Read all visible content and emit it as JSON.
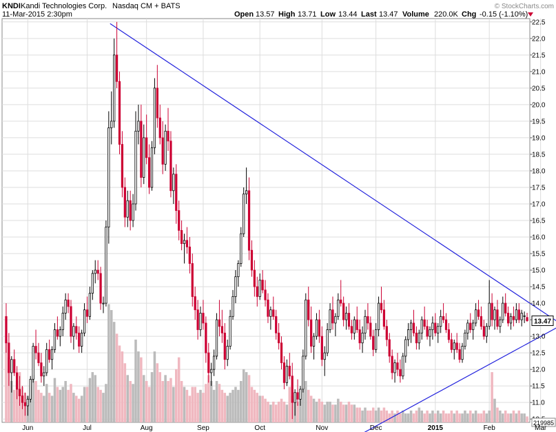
{
  "header": {
    "symbol": "KNDI",
    "company": "Kandi Technologies Corp.",
    "exchange": "Nasdaq CM + BATS",
    "date_time": "11-Mar-2015 2:30pm",
    "open_label": "Open",
    "open_value": "13.57",
    "high_label": "High",
    "high_value": "13.71",
    "low_label": "Low",
    "low_value": "13.44",
    "last_label": "Last",
    "last_value": "13.47",
    "volume_label": "Volume",
    "volume_value": "220.0K",
    "chg_label": "Chg",
    "chg_value": "-0.15 (-1.10%)",
    "watermark": "© StockCharts.com"
  },
  "colors": {
    "up": "#000000",
    "down": "#cc0033",
    "trendline": "#2222dd",
    "grid": "#dddddd",
    "vol_up": "#bbbbbb",
    "vol_down": "#f0b8c0",
    "last_marker": "#000000"
  },
  "chart_data": {
    "type": "candlestick",
    "y_ticks": [
      "10.5",
      "11.0",
      "11.5",
      "12.0",
      "12.5",
      "13.0",
      "13.5",
      "14.0",
      "14.5",
      "15.0",
      "15.5",
      "16.0",
      "16.5",
      "17.0",
      "17.5",
      "18.0",
      "18.5",
      "19.0",
      "19.5",
      "20.0",
      "20.5",
      "21.0",
      "21.5",
      "22.0",
      "22.5"
    ],
    "ylim": [
      10.4,
      22.6
    ],
    "x_labels": [
      {
        "label": "Jun",
        "index": 8,
        "bold": false
      },
      {
        "label": "Jul",
        "index": 30,
        "bold": false
      },
      {
        "label": "Aug",
        "index": 52,
        "bold": false
      },
      {
        "label": "Sep",
        "index": 73,
        "bold": false
      },
      {
        "label": "Oct",
        "index": 94,
        "bold": false
      },
      {
        "label": "Nov",
        "index": 117,
        "bold": false
      },
      {
        "label": "Dec",
        "index": 137,
        "bold": false
      },
      {
        "label": "2015",
        "index": 159,
        "bold": true
      },
      {
        "label": "Feb",
        "index": 179,
        "bold": false
      },
      {
        "label": "Mar",
        "index": 198,
        "bold": false
      }
    ],
    "last_price_label": "13.47",
    "volume_label": "219985",
    "ohlc": [
      [
        13.6,
        14.0,
        12.5,
        12.8
      ],
      [
        12.8,
        13.1,
        11.5,
        11.9
      ],
      [
        11.9,
        12.4,
        11.3,
        12.3
      ],
      [
        12.3,
        12.6,
        11.8,
        11.9
      ],
      [
        11.9,
        12.1,
        11.1,
        11.4
      ],
      [
        11.4,
        11.8,
        10.9,
        11.2
      ],
      [
        11.2,
        11.5,
        10.8,
        11.0
      ],
      [
        11.0,
        11.3,
        10.6,
        10.9
      ],
      [
        10.9,
        11.2,
        10.6,
        11.1
      ],
      [
        11.1,
        11.8,
        11.0,
        11.7
      ],
      [
        11.7,
        12.8,
        11.6,
        12.7
      ],
      [
        12.7,
        13.2,
        12.3,
        12.5
      ],
      [
        12.5,
        12.8,
        12.1,
        12.2
      ],
      [
        12.2,
        12.5,
        11.6,
        11.8
      ],
      [
        11.8,
        12.1,
        11.5,
        11.9
      ],
      [
        11.9,
        12.8,
        11.8,
        12.6
      ],
      [
        12.6,
        12.9,
        12.2,
        12.3
      ],
      [
        12.3,
        12.7,
        12.0,
        12.6
      ],
      [
        12.6,
        13.4,
        12.5,
        13.2
      ],
      [
        13.2,
        13.6,
        12.9,
        13.0
      ],
      [
        13.0,
        13.3,
        12.7,
        13.2
      ],
      [
        13.2,
        13.9,
        13.0,
        13.7
      ],
      [
        13.7,
        14.3,
        13.5,
        14.1
      ],
      [
        14.1,
        14.3,
        13.7,
        13.9
      ],
      [
        13.9,
        14.1,
        12.8,
        13.0
      ],
      [
        13.0,
        13.4,
        12.6,
        13.3
      ],
      [
        13.3,
        13.6,
        12.9,
        13.1
      ],
      [
        13.1,
        13.3,
        12.5,
        12.7
      ],
      [
        12.7,
        13.2,
        12.5,
        13.1
      ],
      [
        13.1,
        14.0,
        13.0,
        13.8
      ],
      [
        13.8,
        14.2,
        13.4,
        13.6
      ],
      [
        13.6,
        14.5,
        13.5,
        14.3
      ],
      [
        14.3,
        15.0,
        14.1,
        14.9
      ],
      [
        14.9,
        15.3,
        14.6,
        15.0
      ],
      [
        15.0,
        15.3,
        14.7,
        14.9
      ],
      [
        14.9,
        15.1,
        13.8,
        14.0
      ],
      [
        14.0,
        14.2,
        13.7,
        14.0
      ],
      [
        14.0,
        16.5,
        13.9,
        16.3
      ],
      [
        16.3,
        19.8,
        15.8,
        19.3
      ],
      [
        19.3,
        20.4,
        18.8,
        19.5
      ],
      [
        19.5,
        22.0,
        19.3,
        21.5
      ],
      [
        21.5,
        22.5,
        20.5,
        20.7
      ],
      [
        20.7,
        21.0,
        18.5,
        18.8
      ],
      [
        18.8,
        19.2,
        17.2,
        17.5
      ],
      [
        17.5,
        17.8,
        16.3,
        16.6
      ],
      [
        16.6,
        17.4,
        16.3,
        17.1
      ],
      [
        17.1,
        17.4,
        16.2,
        16.5
      ],
      [
        16.5,
        17.3,
        16.3,
        17.0
      ],
      [
        17.0,
        19.8,
        16.8,
        19.2
      ],
      [
        19.2,
        20.0,
        18.8,
        19.5
      ],
      [
        19.5,
        20.0,
        17.5,
        17.8
      ],
      [
        17.8,
        19.4,
        17.6,
        19.0
      ],
      [
        19.0,
        19.7,
        18.2,
        18.4
      ],
      [
        18.4,
        18.8,
        17.3,
        17.5
      ],
      [
        17.5,
        18.9,
        17.4,
        18.7
      ],
      [
        18.7,
        20.8,
        18.5,
        20.5
      ],
      [
        20.5,
        21.2,
        19.3,
        19.6
      ],
      [
        19.6,
        20.0,
        18.8,
        19.0
      ],
      [
        19.0,
        19.5,
        17.9,
        18.2
      ],
      [
        18.2,
        19.4,
        18.0,
        19.2
      ],
      [
        19.2,
        19.9,
        18.6,
        18.9
      ],
      [
        18.9,
        19.2,
        17.2,
        17.4
      ],
      [
        17.4,
        18.1,
        17.0,
        17.9
      ],
      [
        17.9,
        18.2,
        16.4,
        16.8
      ],
      [
        16.8,
        17.1,
        15.9,
        16.2
      ],
      [
        16.2,
        16.5,
        15.6,
        15.8
      ],
      [
        15.8,
        16.1,
        15.2,
        15.9
      ],
      [
        15.9,
        16.3,
        15.5,
        15.7
      ],
      [
        15.7,
        16.0,
        14.9,
        15.2
      ],
      [
        15.2,
        15.5,
        13.9,
        14.2
      ],
      [
        14.2,
        14.5,
        13.5,
        13.8
      ],
      [
        13.8,
        14.1,
        12.9,
        13.2
      ],
      [
        13.2,
        13.9,
        13.0,
        13.7
      ],
      [
        13.7,
        14.1,
        13.2,
        13.4
      ],
      [
        13.4,
        13.6,
        12.2,
        12.5
      ],
      [
        12.5,
        12.8,
        11.6,
        11.9
      ],
      [
        11.9,
        12.2,
        11.5,
        12.0
      ],
      [
        12.0,
        12.6,
        11.8,
        12.4
      ],
      [
        12.4,
        13.7,
        12.3,
        13.5
      ],
      [
        13.5,
        14.1,
        13.0,
        13.3
      ],
      [
        13.3,
        13.8,
        12.8,
        13.1
      ],
      [
        13.1,
        13.4,
        12.0,
        12.3
      ],
      [
        12.3,
        12.9,
        12.1,
        12.7
      ],
      [
        12.7,
        13.8,
        12.6,
        13.6
      ],
      [
        13.6,
        14.4,
        13.5,
        14.2
      ],
      [
        14.2,
        15.0,
        14.0,
        14.8
      ],
      [
        14.8,
        15.3,
        14.5,
        15.2
      ],
      [
        15.2,
        16.3,
        15.1,
        16.1
      ],
      [
        16.1,
        17.5,
        16.0,
        17.3
      ],
      [
        17.3,
        18.1,
        17.0,
        17.4
      ],
      [
        17.4,
        17.8,
        15.3,
        15.6
      ],
      [
        15.6,
        15.9,
        14.8,
        15.0
      ],
      [
        15.0,
        15.3,
        14.2,
        14.5
      ],
      [
        14.5,
        14.8,
        13.9,
        14.2
      ],
      [
        14.2,
        14.9,
        14.1,
        14.7
      ],
      [
        14.7,
        15.0,
        14.3,
        14.4
      ],
      [
        14.4,
        14.7,
        13.9,
        14.1
      ],
      [
        14.1,
        14.3,
        13.4,
        13.6
      ],
      [
        13.6,
        13.9,
        13.2,
        13.8
      ],
      [
        13.8,
        14.2,
        13.5,
        13.6
      ],
      [
        13.6,
        13.8,
        12.9,
        13.1
      ],
      [
        13.1,
        13.4,
        12.6,
        12.8
      ],
      [
        12.8,
        13.0,
        12.0,
        12.2
      ],
      [
        12.2,
        12.4,
        11.4,
        11.6
      ],
      [
        11.6,
        12.3,
        11.5,
        12.1
      ],
      [
        12.1,
        12.5,
        11.7,
        11.8
      ],
      [
        11.8,
        12.2,
        10.5,
        11.0
      ],
      [
        11.0,
        11.4,
        10.6,
        11.3
      ],
      [
        11.3,
        11.7,
        10.9,
        11.1
      ],
      [
        11.1,
        11.5,
        10.9,
        11.4
      ],
      [
        11.4,
        12.6,
        11.3,
        12.4
      ],
      [
        12.4,
        14.3,
        12.3,
        14.1
      ],
      [
        14.1,
        14.5,
        13.3,
        13.5
      ],
      [
        13.5,
        13.9,
        12.5,
        12.7
      ],
      [
        12.7,
        13.1,
        12.3,
        13.0
      ],
      [
        13.0,
        13.7,
        12.9,
        13.5
      ],
      [
        13.5,
        13.8,
        12.8,
        13.0
      ],
      [
        13.0,
        13.3,
        12.1,
        12.3
      ],
      [
        12.3,
        12.7,
        11.8,
        12.5
      ],
      [
        12.5,
        13.4,
        12.4,
        13.2
      ],
      [
        13.2,
        14.0,
        13.1,
        13.8
      ],
      [
        13.8,
        14.2,
        13.2,
        13.4
      ],
      [
        13.4,
        13.7,
        13.0,
        13.6
      ],
      [
        13.6,
        14.3,
        13.5,
        14.1
      ],
      [
        14.1,
        14.7,
        13.9,
        14.0
      ],
      [
        14.0,
        14.2,
        13.3,
        13.5
      ],
      [
        13.5,
        13.9,
        13.2,
        13.7
      ],
      [
        13.7,
        14.0,
        13.2,
        13.3
      ],
      [
        13.3,
        13.5,
        12.9,
        13.1
      ],
      [
        13.1,
        13.6,
        12.9,
        13.5
      ],
      [
        13.5,
        13.9,
        13.1,
        13.2
      ],
      [
        13.2,
        13.5,
        12.6,
        12.8
      ],
      [
        12.8,
        13.3,
        12.5,
        13.1
      ],
      [
        13.1,
        13.8,
        12.9,
        13.6
      ],
      [
        13.6,
        14.0,
        13.2,
        13.4
      ],
      [
        13.4,
        13.6,
        12.9,
        13.0
      ],
      [
        13.0,
        13.2,
        12.4,
        12.6
      ],
      [
        12.6,
        13.4,
        12.5,
        13.2
      ],
      [
        13.2,
        14.2,
        13.0,
        14.0
      ],
      [
        14.0,
        14.5,
        13.7,
        13.8
      ],
      [
        13.8,
        14.1,
        13.2,
        13.3
      ],
      [
        13.3,
        13.5,
        12.7,
        12.9
      ],
      [
        12.9,
        13.1,
        12.2,
        12.4
      ],
      [
        12.4,
        12.6,
        11.7,
        11.9
      ],
      [
        11.9,
        12.3,
        11.6,
        12.2
      ],
      [
        12.2,
        12.5,
        11.8,
        12.0
      ],
      [
        12.0,
        12.3,
        11.6,
        11.8
      ],
      [
        11.8,
        12.5,
        11.7,
        12.4
      ],
      [
        12.4,
        13.0,
        12.2,
        12.9
      ],
      [
        12.9,
        13.4,
        12.7,
        13.2
      ],
      [
        13.2,
        13.5,
        12.8,
        13.4
      ],
      [
        13.4,
        13.8,
        13.0,
        13.1
      ],
      [
        13.1,
        13.3,
        12.6,
        12.8
      ],
      [
        12.8,
        13.2,
        12.6,
        13.1
      ],
      [
        13.1,
        13.6,
        12.9,
        13.5
      ],
      [
        13.5,
        13.9,
        13.2,
        13.3
      ],
      [
        13.3,
        13.5,
        12.9,
        13.0
      ],
      [
        13.0,
        13.3,
        12.7,
        13.2
      ],
      [
        13.2,
        13.6,
        12.9,
        13.4
      ],
      [
        13.4,
        13.7,
        13.0,
        13.1
      ],
      [
        13.1,
        13.4,
        12.8,
        13.3
      ],
      [
        13.3,
        13.8,
        13.1,
        13.6
      ],
      [
        13.6,
        14.0,
        13.4,
        13.5
      ],
      [
        13.5,
        13.7,
        13.1,
        13.2
      ],
      [
        13.2,
        13.4,
        12.8,
        12.9
      ],
      [
        12.9,
        13.1,
        12.5,
        12.6
      ],
      [
        12.6,
        12.9,
        12.3,
        12.8
      ],
      [
        12.8,
        13.1,
        12.5,
        12.6
      ],
      [
        12.6,
        12.8,
        12.2,
        12.3
      ],
      [
        12.3,
        12.8,
        12.2,
        12.7
      ],
      [
        12.7,
        13.2,
        12.6,
        13.1
      ],
      [
        13.1,
        13.5,
        12.9,
        13.4
      ],
      [
        13.4,
        13.7,
        13.1,
        13.2
      ],
      [
        13.2,
        13.5,
        12.9,
        13.4
      ],
      [
        13.4,
        14.0,
        13.3,
        13.8
      ],
      [
        13.8,
        14.1,
        13.5,
        13.6
      ],
      [
        13.6,
        13.9,
        13.2,
        13.3
      ],
      [
        13.3,
        13.5,
        12.9,
        13.0
      ],
      [
        13.0,
        13.4,
        12.8,
        13.3
      ],
      [
        13.3,
        14.7,
        13.2,
        14.0
      ],
      [
        14.0,
        14.3,
        13.3,
        13.5
      ],
      [
        13.5,
        13.9,
        13.2,
        13.8
      ],
      [
        13.8,
        14.1,
        13.2,
        13.3
      ],
      [
        13.3,
        13.6,
        13.1,
        13.5
      ],
      [
        13.5,
        14.2,
        13.4,
        14.0
      ],
      [
        14.0,
        14.3,
        13.6,
        13.7
      ],
      [
        13.7,
        13.9,
        13.3,
        13.4
      ],
      [
        13.4,
        13.7,
        13.2,
        13.6
      ],
      [
        13.6,
        13.9,
        13.3,
        13.5
      ],
      [
        13.5,
        14.0,
        13.4,
        13.8
      ],
      [
        13.8,
        14.0,
        13.4,
        13.5
      ],
      [
        13.5,
        13.8,
        13.3,
        13.7
      ],
      [
        13.62,
        13.75,
        13.4,
        13.62
      ],
      [
        13.57,
        13.71,
        13.44,
        13.47
      ]
    ],
    "volume": [
      140,
      110,
      70,
      55,
      70,
      85,
      60,
      50,
      45,
      60,
      80,
      70,
      55,
      50,
      45,
      65,
      50,
      45,
      75,
      60,
      55,
      60,
      70,
      55,
      65,
      50,
      45,
      40,
      45,
      60,
      60,
      75,
      85,
      80,
      60,
      55,
      50,
      65,
      200,
      190,
      170,
      150,
      130,
      120,
      100,
      80,
      70,
      65,
      140,
      120,
      110,
      80,
      70,
      60,
      85,
      120,
      100,
      85,
      70,
      80,
      70,
      75,
      60,
      90,
      110,
      70,
      60,
      55,
      45,
      60,
      60,
      50,
      55,
      50,
      65,
      80,
      70,
      55,
      70,
      65,
      55,
      50,
      45,
      50,
      55,
      60,
      55,
      70,
      90,
      85,
      80,
      60,
      55,
      50,
      45,
      45,
      40,
      35,
      30,
      35,
      30,
      35,
      40,
      35,
      30,
      60,
      45,
      40,
      35,
      40,
      55,
      70,
      55,
      45,
      40,
      35,
      40,
      35,
      30,
      35,
      35,
      30,
      30,
      40,
      35,
      30,
      30,
      35,
      30,
      30,
      25,
      25,
      20,
      25,
      20,
      20,
      25,
      20,
      25,
      20,
      25,
      20,
      15,
      20,
      15,
      20,
      15,
      20,
      15,
      15,
      20,
      15,
      20,
      25,
      20,
      15,
      20,
      15,
      20,
      15,
      20,
      15,
      20,
      15,
      15,
      20,
      15,
      20,
      15,
      15,
      20,
      15,
      20,
      15,
      20,
      15,
      15,
      20,
      15,
      20,
      85,
      40,
      25,
      20,
      15,
      20,
      15,
      15,
      20,
      15,
      20,
      15,
      15,
      10
    ],
    "vol_max": 225,
    "trendlines": [
      {
        "x1": 38.5,
        "y1": 22.45,
        "x2": 206,
        "y2": 13.35
      },
      {
        "x1": 126,
        "y1": 9.8,
        "x2": 206,
        "y2": 13.35
      }
    ]
  }
}
